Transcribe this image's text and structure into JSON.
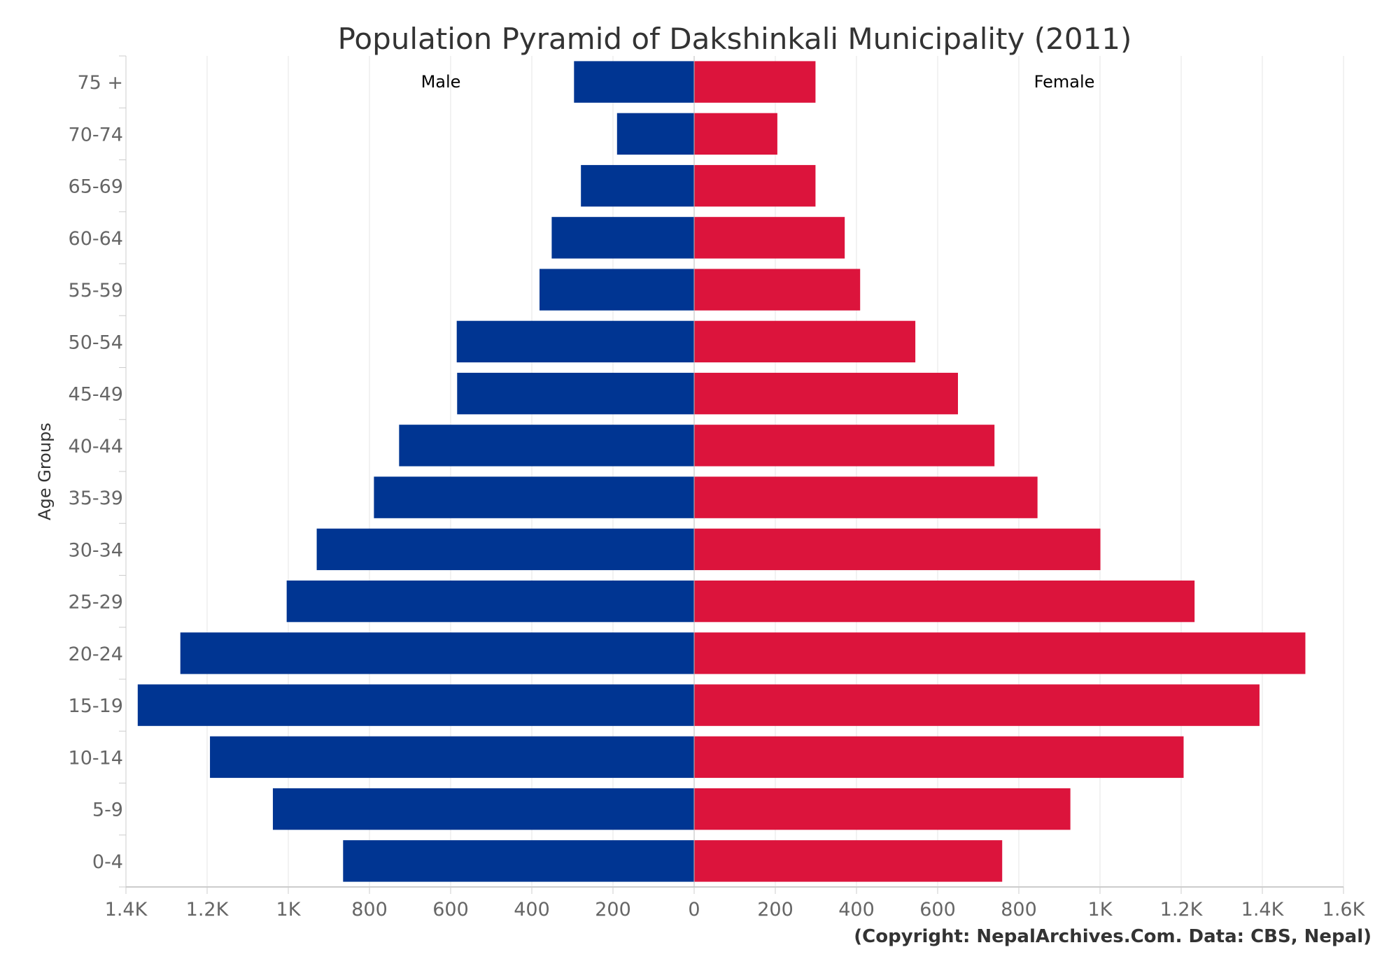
{
  "chart_data": {
    "type": "bar",
    "orientation": "horizontal-pyramid",
    "title": "Population Pyramid of Dakshinkali Municipality (2011)",
    "ylabel": "Age Groups",
    "credit": "(Copyright: NepalArchives.Com. Data: CBS, Nepal)",
    "categories": [
      "0-4",
      "5-9",
      "10-14",
      "15-19",
      "20-24",
      "25-29",
      "30-34",
      "35-39",
      "40-44",
      "45-49",
      "50-54",
      "55-59",
      "60-64",
      "65-69",
      "70-74",
      "75 +"
    ],
    "series": [
      {
        "name": "Male",
        "color": "#003592",
        "values": [
          865,
          1038,
          1193,
          1371,
          1266,
          1004,
          930,
          789,
          727,
          584,
          585,
          381,
          351,
          279,
          190,
          296
        ]
      },
      {
        "name": "Female",
        "color": "#DC143C",
        "values": [
          759,
          927,
          1206,
          1393,
          1506,
          1233,
          1001,
          846,
          740,
          650,
          545,
          409,
          371,
          299,
          205,
          299
        ]
      }
    ],
    "xlim": [
      -1400,
      1600
    ],
    "xticks": [
      -1400,
      -1200,
      -1000,
      -800,
      -600,
      -400,
      -200,
      0,
      200,
      400,
      600,
      800,
      1000,
      1200,
      1400,
      1600
    ],
    "xtick_labels": [
      "1.4K",
      "1.2K",
      "1K",
      "800",
      "600",
      "400",
      "200",
      "0",
      "200",
      "400",
      "600",
      "800",
      "1K",
      "1.2K",
      "1.4K",
      "1.6K"
    ],
    "grid": true,
    "legend": "inside-top"
  }
}
